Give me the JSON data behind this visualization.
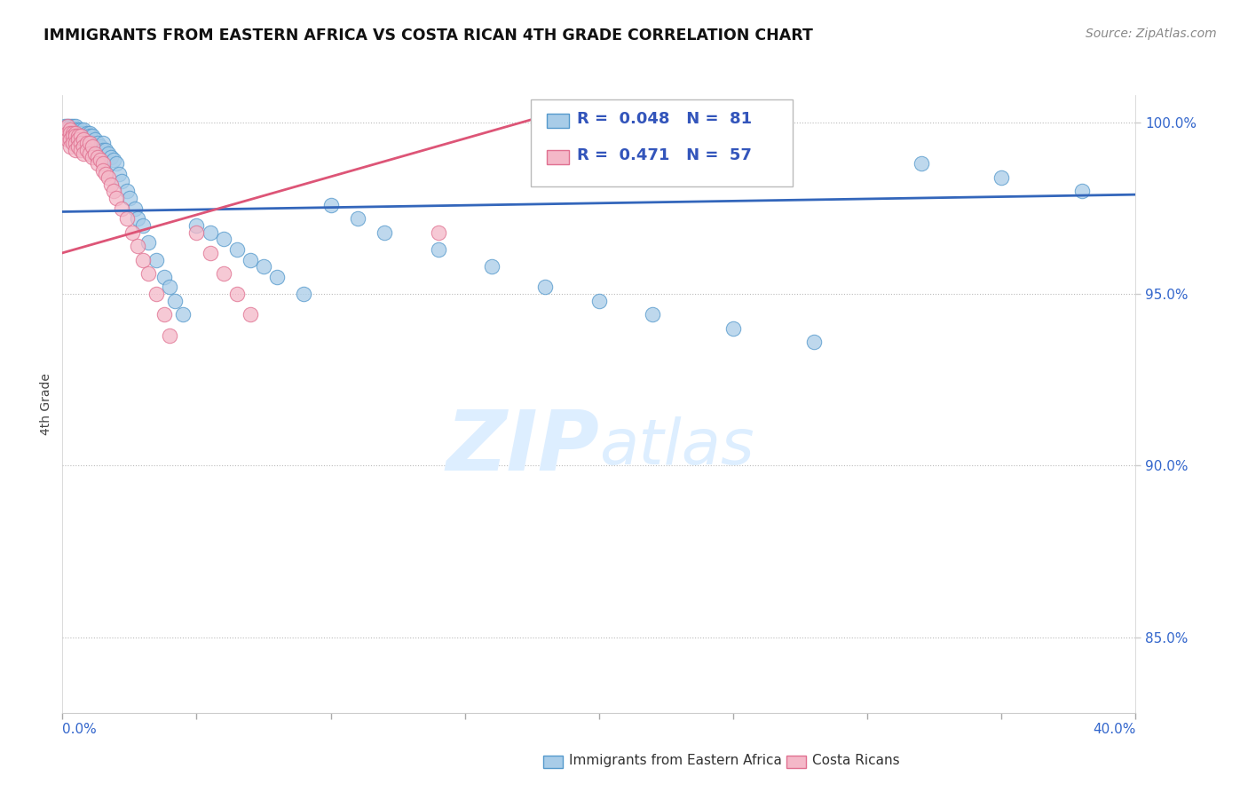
{
  "title": "IMMIGRANTS FROM EASTERN AFRICA VS COSTA RICAN 4TH GRADE CORRELATION CHART",
  "source": "Source: ZipAtlas.com",
  "ylabel": "4th Grade",
  "ylabel_right_ticks": [
    "100.0%",
    "95.0%",
    "90.0%",
    "85.0%"
  ],
  "ylabel_right_values": [
    1.0,
    0.95,
    0.9,
    0.85
  ],
  "xlim": [
    0.0,
    0.4
  ],
  "ylim": [
    0.828,
    1.008
  ],
  "blue_R": 0.048,
  "blue_N": 81,
  "pink_R": 0.471,
  "pink_N": 57,
  "blue_color": "#a8cce8",
  "blue_edge_color": "#5599cc",
  "blue_line_color": "#3366bb",
  "pink_color": "#f4b8c8",
  "pink_edge_color": "#e07090",
  "pink_line_color": "#dd5577",
  "legend_R_color": "#3355bb",
  "watermark_color": "#ddeeff",
  "blue_line_x0": 0.0,
  "blue_line_y0": 0.974,
  "blue_line_x1": 0.4,
  "blue_line_y1": 0.979,
  "pink_line_x0": 0.0,
  "pink_line_y0": 0.962,
  "pink_line_x1": 0.18,
  "pink_line_y1": 1.002,
  "blue_scatter_x": [
    0.001,
    0.001,
    0.001,
    0.002,
    0.002,
    0.002,
    0.002,
    0.003,
    0.003,
    0.003,
    0.003,
    0.003,
    0.004,
    0.004,
    0.004,
    0.004,
    0.005,
    0.005,
    0.005,
    0.005,
    0.006,
    0.006,
    0.006,
    0.007,
    0.007,
    0.007,
    0.008,
    0.008,
    0.008,
    0.009,
    0.009,
    0.01,
    0.01,
    0.01,
    0.011,
    0.011,
    0.012,
    0.012,
    0.013,
    0.014,
    0.015,
    0.015,
    0.016,
    0.017,
    0.018,
    0.019,
    0.02,
    0.021,
    0.022,
    0.024,
    0.025,
    0.027,
    0.028,
    0.03,
    0.032,
    0.035,
    0.038,
    0.04,
    0.042,
    0.045,
    0.05,
    0.055,
    0.06,
    0.065,
    0.07,
    0.075,
    0.08,
    0.09,
    0.1,
    0.11,
    0.12,
    0.14,
    0.16,
    0.18,
    0.2,
    0.22,
    0.25,
    0.28,
    0.32,
    0.35,
    0.38
  ],
  "blue_scatter_y": [
    0.999,
    0.998,
    0.997,
    0.999,
    0.998,
    0.997,
    0.996,
    0.999,
    0.998,
    0.997,
    0.996,
    0.995,
    0.999,
    0.998,
    0.997,
    0.996,
    0.999,
    0.998,
    0.997,
    0.995,
    0.998,
    0.997,
    0.996,
    0.998,
    0.997,
    0.995,
    0.998,
    0.996,
    0.994,
    0.997,
    0.995,
    0.997,
    0.996,
    0.994,
    0.996,
    0.994,
    0.995,
    0.993,
    0.994,
    0.993,
    0.994,
    0.992,
    0.992,
    0.991,
    0.99,
    0.989,
    0.988,
    0.985,
    0.983,
    0.98,
    0.978,
    0.975,
    0.972,
    0.97,
    0.965,
    0.96,
    0.955,
    0.952,
    0.948,
    0.944,
    0.97,
    0.968,
    0.966,
    0.963,
    0.96,
    0.958,
    0.955,
    0.95,
    0.976,
    0.972,
    0.968,
    0.963,
    0.958,
    0.952,
    0.948,
    0.944,
    0.94,
    0.936,
    0.988,
    0.984,
    0.98
  ],
  "pink_scatter_x": [
    0.001,
    0.001,
    0.002,
    0.002,
    0.002,
    0.003,
    0.003,
    0.003,
    0.003,
    0.004,
    0.004,
    0.004,
    0.005,
    0.005,
    0.005,
    0.005,
    0.006,
    0.006,
    0.006,
    0.007,
    0.007,
    0.007,
    0.008,
    0.008,
    0.008,
    0.009,
    0.009,
    0.01,
    0.01,
    0.011,
    0.011,
    0.012,
    0.013,
    0.013,
    0.014,
    0.015,
    0.015,
    0.016,
    0.017,
    0.018,
    0.019,
    0.02,
    0.022,
    0.024,
    0.026,
    0.028,
    0.03,
    0.032,
    0.035,
    0.038,
    0.04,
    0.05,
    0.055,
    0.06,
    0.065,
    0.07,
    0.14
  ],
  "pink_scatter_y": [
    0.998,
    0.996,
    0.999,
    0.997,
    0.995,
    0.998,
    0.997,
    0.995,
    0.993,
    0.997,
    0.996,
    0.994,
    0.997,
    0.996,
    0.994,
    0.992,
    0.996,
    0.995,
    0.993,
    0.996,
    0.994,
    0.992,
    0.995,
    0.993,
    0.991,
    0.994,
    0.992,
    0.994,
    0.991,
    0.993,
    0.99,
    0.991,
    0.99,
    0.988,
    0.989,
    0.988,
    0.986,
    0.985,
    0.984,
    0.982,
    0.98,
    0.978,
    0.975,
    0.972,
    0.968,
    0.964,
    0.96,
    0.956,
    0.95,
    0.944,
    0.938,
    0.968,
    0.962,
    0.956,
    0.95,
    0.944,
    0.968
  ]
}
